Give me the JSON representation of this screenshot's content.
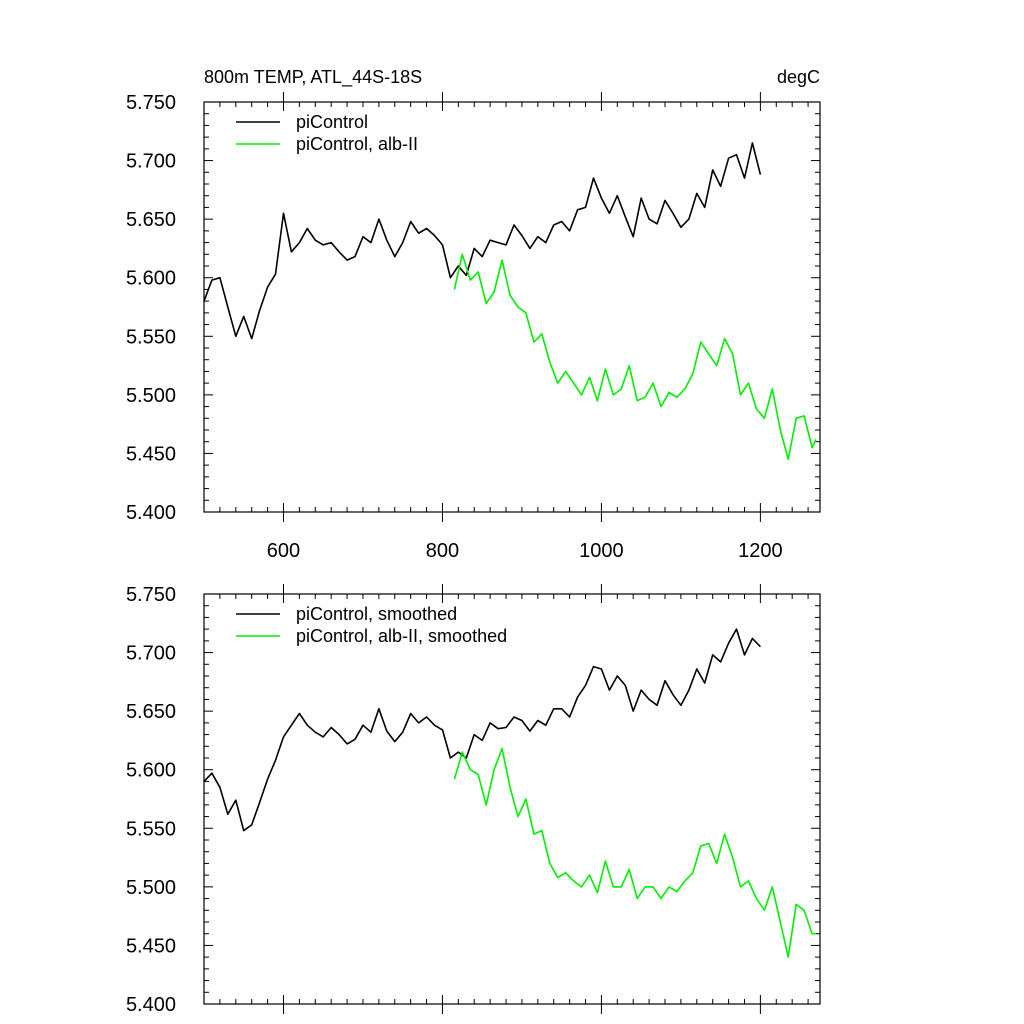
{
  "figure": {
    "title_left": "800m TEMP, ATL_44S-18S",
    "title_right": "degC"
  },
  "chart_data": [
    {
      "type": "line",
      "title": "800m TEMP, ATL_44S-18S",
      "units": "degC",
      "xlim": [
        500,
        1275
      ],
      "ylim": [
        5.4,
        5.75
      ],
      "x_ticks": [
        600,
        800,
        1000,
        1200
      ],
      "x_tick_labels": [
        "600",
        "800",
        "1000",
        "1200"
      ],
      "y_ticks": [
        5.4,
        5.45,
        5.5,
        5.55,
        5.6,
        5.65,
        5.7,
        5.75
      ],
      "y_tick_labels": [
        "5.400",
        "5.450",
        "5.500",
        "5.550",
        "5.600",
        "5.650",
        "5.700",
        "5.750"
      ],
      "grid": false,
      "legend_position": "top-left",
      "series": [
        {
          "name": "piControl",
          "color": "#000000",
          "x": [
            500,
            510,
            520,
            530,
            540,
            550,
            560,
            570,
            580,
            590,
            600,
            610,
            620,
            630,
            640,
            650,
            660,
            670,
            680,
            690,
            700,
            710,
            720,
            730,
            740,
            750,
            760,
            770,
            780,
            790,
            800,
            810,
            820,
            830,
            840,
            850,
            860,
            870,
            880,
            890,
            900,
            910,
            920,
            930,
            940,
            950,
            960,
            970,
            980,
            990,
            1000,
            1010,
            1020,
            1030,
            1040,
            1050,
            1060,
            1070,
            1080,
            1090,
            1100,
            1110,
            1120,
            1130,
            1140,
            1150,
            1160,
            1170,
            1180,
            1190,
            1200
          ],
          "values": [
            5.58,
            5.598,
            5.6,
            5.575,
            5.55,
            5.567,
            5.548,
            5.572,
            5.592,
            5.603,
            5.655,
            5.622,
            5.63,
            5.642,
            5.632,
            5.628,
            5.63,
            5.622,
            5.615,
            5.618,
            5.635,
            5.63,
            5.65,
            5.632,
            5.618,
            5.63,
            5.648,
            5.638,
            5.642,
            5.636,
            5.628,
            5.6,
            5.61,
            5.602,
            5.625,
            5.618,
            5.632,
            5.63,
            5.628,
            5.645,
            5.636,
            5.625,
            5.635,
            5.63,
            5.645,
            5.648,
            5.64,
            5.658,
            5.66,
            5.685,
            5.668,
            5.655,
            5.67,
            5.652,
            5.635,
            5.668,
            5.65,
            5.646,
            5.666,
            5.655,
            5.643,
            5.65,
            5.672,
            5.66,
            5.692,
            5.678,
            5.702,
            5.705,
            5.685,
            5.715,
            5.688
          ]
        },
        {
          "name": "piControl, alb-II",
          "color": "#00ee00",
          "x": [
            815,
            825,
            835,
            845,
            855,
            865,
            875,
            885,
            895,
            905,
            915,
            925,
            935,
            945,
            955,
            965,
            975,
            985,
            995,
            1005,
            1015,
            1025,
            1035,
            1045,
            1055,
            1065,
            1075,
            1085,
            1095,
            1105,
            1115,
            1125,
            1135,
            1145,
            1155,
            1165,
            1175,
            1185,
            1195,
            1205,
            1215,
            1225,
            1235,
            1245,
            1255,
            1265,
            1270
          ],
          "values": [
            5.59,
            5.62,
            5.598,
            5.605,
            5.578,
            5.588,
            5.615,
            5.585,
            5.575,
            5.57,
            5.545,
            5.552,
            5.528,
            5.51,
            5.52,
            5.51,
            5.5,
            5.515,
            5.495,
            5.522,
            5.5,
            5.505,
            5.525,
            5.495,
            5.498,
            5.51,
            5.49,
            5.502,
            5.498,
            5.505,
            5.518,
            5.545,
            5.535,
            5.525,
            5.548,
            5.535,
            5.5,
            5.51,
            5.488,
            5.48,
            5.505,
            5.47,
            5.445,
            5.48,
            5.482,
            5.455,
            5.462
          ]
        }
      ]
    },
    {
      "type": "line",
      "xlim": [
        500,
        1275
      ],
      "ylim": [
        5.4,
        5.75
      ],
      "x_ticks": [
        600,
        800,
        1000,
        1200
      ],
      "x_tick_labels": [],
      "y_ticks": [
        5.4,
        5.45,
        5.5,
        5.55,
        5.6,
        5.65,
        5.7,
        5.75
      ],
      "y_tick_labels": [
        "5.400",
        "5.450",
        "5.500",
        "5.550",
        "5.600",
        "5.650",
        "5.700",
        "5.750"
      ],
      "grid": false,
      "legend_position": "top-left",
      "series": [
        {
          "name": "piControl, smoothed",
          "color": "#000000",
          "x": [
            500,
            510,
            520,
            530,
            540,
            550,
            560,
            570,
            580,
            590,
            600,
            610,
            620,
            630,
            640,
            650,
            660,
            670,
            680,
            690,
            700,
            710,
            720,
            730,
            740,
            750,
            760,
            770,
            780,
            790,
            800,
            810,
            820,
            830,
            840,
            850,
            860,
            870,
            880,
            890,
            900,
            910,
            920,
            930,
            940,
            950,
            960,
            970,
            980,
            990,
            1000,
            1010,
            1020,
            1030,
            1040,
            1050,
            1060,
            1070,
            1080,
            1090,
            1100,
            1110,
            1120,
            1130,
            1140,
            1150,
            1160,
            1170,
            1180,
            1190,
            1200
          ],
          "values": [
            5.59,
            5.597,
            5.585,
            5.562,
            5.574,
            5.548,
            5.553,
            5.572,
            5.592,
            5.608,
            5.628,
            5.638,
            5.648,
            5.638,
            5.632,
            5.628,
            5.636,
            5.63,
            5.622,
            5.626,
            5.638,
            5.632,
            5.652,
            5.633,
            5.624,
            5.632,
            5.648,
            5.64,
            5.645,
            5.638,
            5.634,
            5.61,
            5.615,
            5.61,
            5.63,
            5.625,
            5.64,
            5.635,
            5.636,
            5.645,
            5.642,
            5.633,
            5.642,
            5.638,
            5.652,
            5.652,
            5.645,
            5.662,
            5.672,
            5.688,
            5.686,
            5.668,
            5.68,
            5.672,
            5.65,
            5.668,
            5.66,
            5.655,
            5.676,
            5.664,
            5.655,
            5.668,
            5.686,
            5.674,
            5.698,
            5.692,
            5.708,
            5.72,
            5.698,
            5.712,
            5.705
          ]
        },
        {
          "name": "piControl, alb-II, smoothed",
          "color": "#00ee00",
          "x": [
            815,
            825,
            835,
            845,
            855,
            865,
            875,
            885,
            895,
            905,
            915,
            925,
            935,
            945,
            955,
            965,
            975,
            985,
            995,
            1005,
            1015,
            1025,
            1035,
            1045,
            1055,
            1065,
            1075,
            1085,
            1095,
            1105,
            1115,
            1125,
            1135,
            1145,
            1155,
            1165,
            1175,
            1185,
            1195,
            1205,
            1215,
            1225,
            1235,
            1245,
            1255,
            1265,
            1270
          ],
          "values": [
            5.592,
            5.615,
            5.6,
            5.596,
            5.57,
            5.6,
            5.618,
            5.585,
            5.56,
            5.575,
            5.545,
            5.548,
            5.52,
            5.508,
            5.512,
            5.505,
            5.5,
            5.51,
            5.495,
            5.522,
            5.5,
            5.5,
            5.515,
            5.49,
            5.5,
            5.5,
            5.49,
            5.5,
            5.496,
            5.505,
            5.512,
            5.535,
            5.537,
            5.52,
            5.545,
            5.525,
            5.5,
            5.505,
            5.49,
            5.48,
            5.5,
            5.47,
            5.44,
            5.485,
            5.48,
            5.46,
            5.46
          ]
        }
      ]
    }
  ]
}
